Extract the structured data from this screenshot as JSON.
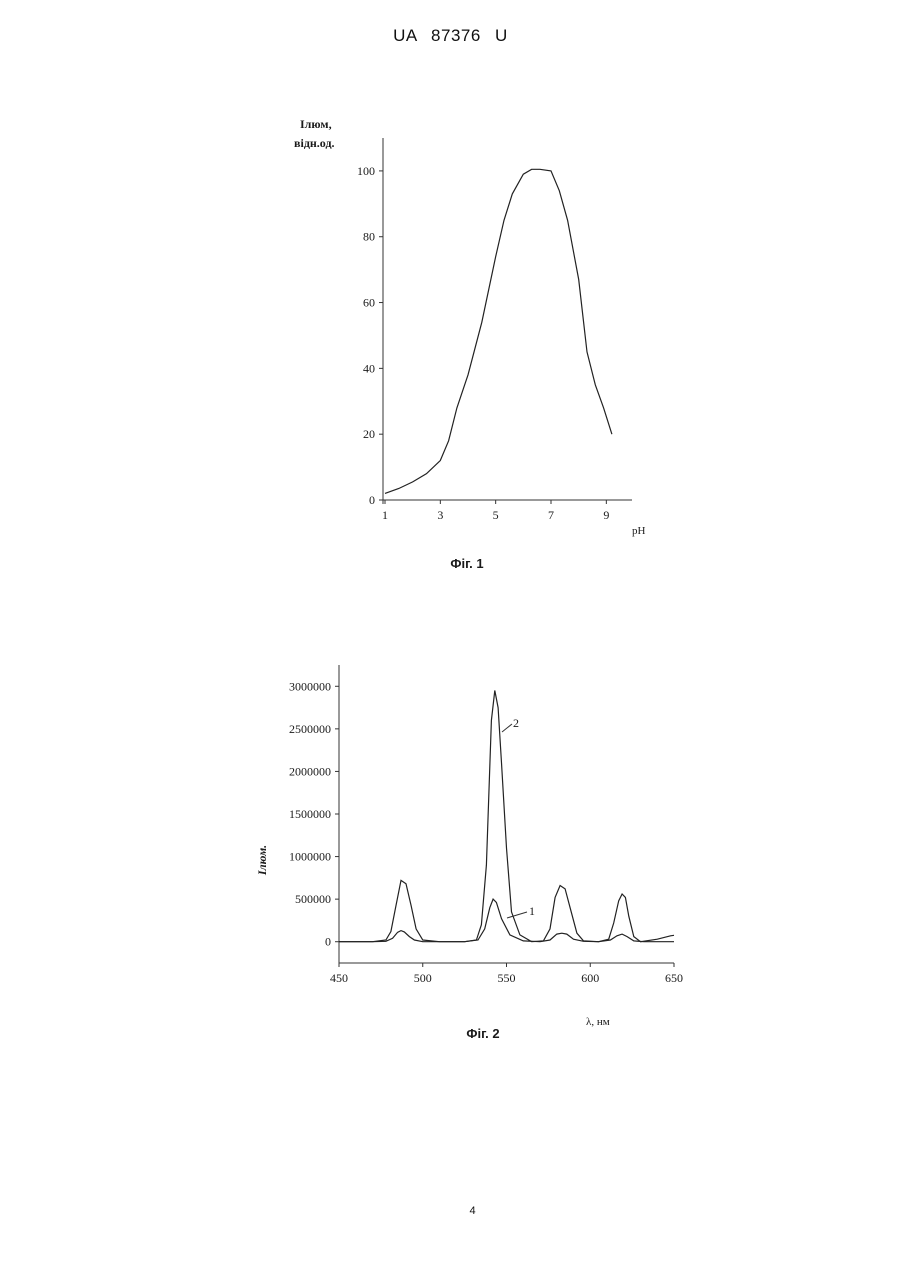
{
  "document": {
    "header": "UA 87376 U",
    "page_number": "4"
  },
  "chart_data": [
    {
      "type": "line",
      "caption": "Фіг. 1",
      "ylabel_line1": "Iлюм,",
      "ylabel_line2": "відн.од.",
      "xlabel": "pH",
      "xlim": [
        1,
        10
      ],
      "ylim": [
        0,
        110
      ],
      "x_ticks": [
        1,
        3,
        5,
        7,
        9
      ],
      "y_ticks": [
        0,
        20,
        40,
        60,
        80,
        100
      ],
      "series": [
        {
          "x": [
            1,
            1.5,
            2,
            2.5,
            3,
            3.3,
            3.6,
            4,
            4.5,
            5,
            5.3,
            5.6,
            6,
            6.3,
            6.6,
            7,
            7.3,
            7.6,
            8,
            8.3,
            8.6,
            8.9,
            9.2
          ],
          "y": [
            2,
            3.5,
            5.5,
            8,
            12,
            18,
            28,
            38,
            54,
            74,
            85,
            93,
            99,
            100.5,
            100.5,
            100,
            94,
            85,
            67,
            45,
            35,
            28,
            20
          ]
        }
      ]
    },
    {
      "type": "line",
      "caption": "Фіг. 2",
      "ylabel": "Iлюм.",
      "xlabel": "λ, нм",
      "xlim": [
        450,
        650
      ],
      "ylim": [
        -250000,
        3250000
      ],
      "x_ticks": [
        450,
        500,
        550,
        600,
        650
      ],
      "y_ticks": [
        0,
        500000,
        1000000,
        1500000,
        2000000,
        2500000,
        3000000
      ],
      "y_tick_labels": [
        "0",
        "500000",
        "1000000",
        "1500000",
        "2000000",
        "2500000",
        "3000000"
      ],
      "series": [
        {
          "name": "1",
          "x": [
            450,
            470,
            478,
            482,
            485,
            487,
            489,
            492,
            495,
            500,
            510,
            525,
            533,
            537,
            540,
            542,
            544,
            547,
            552,
            560,
            570,
            576,
            580,
            583,
            586,
            590,
            596,
            605,
            612,
            616,
            619,
            622,
            626,
            632,
            640,
            650
          ],
          "y": [
            0,
            0,
            5000,
            40000,
            110000,
            130000,
            115000,
            60000,
            20000,
            0,
            0,
            0,
            20000,
            150000,
            400000,
            500000,
            460000,
            270000,
            80000,
            10000,
            0,
            20000,
            90000,
            100000,
            90000,
            30000,
            5000,
            0,
            20000,
            70000,
            90000,
            60000,
            10000,
            0,
            0,
            0
          ]
        },
        {
          "name": "2",
          "x": [
            450,
            470,
            478,
            481,
            484,
            487,
            490,
            493,
            496,
            500,
            510,
            525,
            532,
            535,
            538,
            541,
            543,
            545,
            547,
            550,
            553,
            558,
            565,
            572,
            576,
            579,
            582,
            585,
            588,
            592,
            596,
            605,
            611,
            614,
            617,
            619,
            621,
            623,
            626,
            630,
            640,
            648,
            650
          ],
          "y": [
            0,
            0,
            20000,
            120000,
            420000,
            720000,
            680000,
            430000,
            150000,
            20000,
            0,
            0,
            20000,
            200000,
            900000,
            2600000,
            2950000,
            2750000,
            2100000,
            1100000,
            350000,
            80000,
            0,
            10000,
            150000,
            520000,
            660000,
            620000,
            400000,
            100000,
            10000,
            0,
            30000,
            220000,
            480000,
            560000,
            520000,
            300000,
            60000,
            0,
            30000,
            70000,
            75000
          ]
        }
      ]
    }
  ]
}
